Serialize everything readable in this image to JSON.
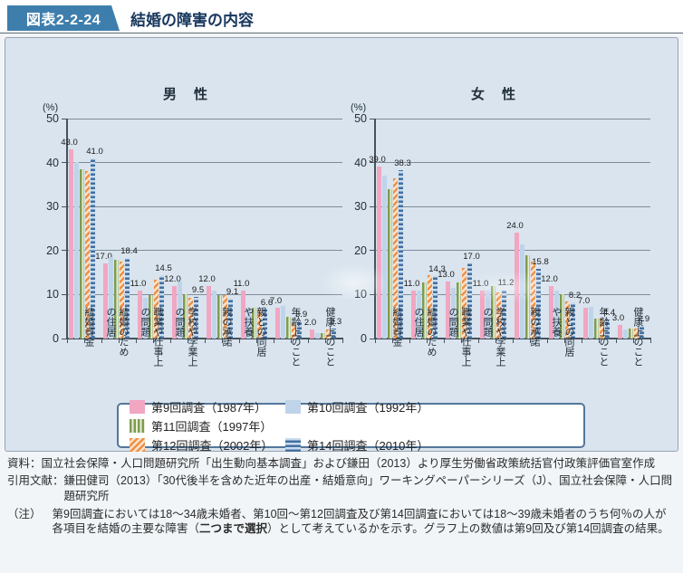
{
  "header": {
    "fig_label": "図表2-2-24",
    "title": "結婚の障害の内容"
  },
  "axis": {
    "percent_label": "(%)",
    "y_ticks": [
      50,
      40,
      30,
      20,
      10,
      0
    ],
    "ylim": [
      0,
      50
    ]
  },
  "chart_data": [
    {
      "type": "bar",
      "title": "男　性",
      "ylabel": "(%)",
      "ylim": [
        0,
        50
      ],
      "grid": true,
      "categories": [
        "結婚資金",
        "結婚のための住居",
        "職業や仕事上の問題",
        "学校や学業上の問題",
        "親の承諾",
        "親との同居や扶養",
        "年齢上のこと",
        "健康上のこと"
      ],
      "categories_display": [
        "結婚資金",
        "結婚のため\nの住居",
        "職業や仕事上\nの問題",
        "学校や学業上\nの問題",
        "親の承諾",
        "親との同居\nや扶養",
        "年齢上のこと",
        "健康上のこと"
      ],
      "series": [
        {
          "name": "第9回調査（1987年）",
          "pattern": "p-s9",
          "show_labels": true,
          "values": [
            43.0,
            17.0,
            11.0,
            12.0,
            12.0,
            11.0,
            7.0,
            2.0
          ]
        },
        {
          "name": "第10回調査（1992年）",
          "pattern": "p-s10",
          "show_labels": false,
          "values": [
            40.2,
            18.6,
            9.3,
            13.0,
            11.0,
            7.0,
            7.5,
            1.3
          ]
        },
        {
          "name": "第11回調査（1997年）",
          "pattern": "p-s11",
          "show_labels": false,
          "values": [
            38.5,
            18.0,
            9.9,
            10.0,
            9.8,
            7.0,
            5.0,
            1.2
          ]
        },
        {
          "name": "第12回調査（2002年）",
          "pattern": "p-s12",
          "show_labels": false,
          "values": [
            38.0,
            17.4,
            13.4,
            9.3,
            9.9,
            6.5,
            3.5,
            2.0
          ]
        },
        {
          "name": "第14回調査（2010年）",
          "pattern": "p-s14",
          "show_labels": true,
          "values": [
            41.0,
            18.4,
            14.5,
            9.5,
            9.1,
            6.6,
            3.9,
            2.3
          ]
        }
      ]
    },
    {
      "type": "bar",
      "title": "女　性",
      "ylabel": "(%)",
      "ylim": [
        0,
        50
      ],
      "grid": true,
      "categories": [
        "結婚資金",
        "結婚のための住居",
        "職業や仕事上の問題",
        "学校や学業上の問題",
        "親の承諾",
        "親との同居や扶養",
        "年齢上のこと",
        "健康上のこと"
      ],
      "categories_display": [
        "結婚資金",
        "結婚のため\nの住居",
        "職業や仕事上\nの問題",
        "学校や学業上\nの問題",
        "親の承諾",
        "親との同居\nや扶養",
        "年齢上のこと",
        "健康上のこと"
      ],
      "series": [
        {
          "name": "第9回調査（1987年）",
          "pattern": "p-s9",
          "show_labels": true,
          "values": [
            39.0,
            11.0,
            13.0,
            11.0,
            24.0,
            12.0,
            7.0,
            3.0
          ]
        },
        {
          "name": "第10回調査（1992年）",
          "pattern": "p-s10",
          "show_labels": false,
          "values": [
            37.0,
            11.0,
            11.5,
            11.0,
            21.5,
            11.0,
            7.2,
            2.0
          ]
        },
        {
          "name": "第11回調査（1997年）",
          "pattern": "p-s11",
          "show_labels": false,
          "values": [
            34.0,
            12.8,
            12.8,
            12.0,
            19.0,
            10.0,
            4.5,
            2.2
          ]
        },
        {
          "name": "第12回調査（2002年）",
          "pattern": "p-s12",
          "show_labels": false,
          "values": [
            36.5,
            14.5,
            16.0,
            10.4,
            17.5,
            8.5,
            4.5,
            2.2
          ]
        },
        {
          "name": "第14回調査（2010年）",
          "pattern": "p-s14",
          "show_labels": true,
          "values": [
            38.3,
            14.3,
            17.0,
            11.2,
            15.8,
            8.2,
            4.4,
            2.9
          ]
        }
      ],
      "note": "数値ラベルは第9回（1987年）と第14回（2010年）の系列のみ表示"
    }
  ],
  "legend": {
    "items": [
      {
        "label": "第9回調査（1987年）",
        "pattern": "p-s9"
      },
      {
        "label": "第10回調査（1992年）",
        "pattern": "p-s10"
      },
      {
        "label": "第11回調査（1997年）",
        "pattern": "p-s11"
      },
      {
        "label": "第12回調査（2002年）",
        "pattern": "p-s12"
      },
      {
        "label": "第14回調査（2010年）",
        "pattern": "p-s14"
      }
    ]
  },
  "footer": {
    "source_label": "資料：",
    "source_text": "国立社会保障・人口問題研究所「出生動向基本調査」および鎌田（2013）より厚生労働省政策統括官付政策評価官室作成",
    "citation_label": "引用文献：",
    "citation_text": "鎌田健司（2013）「30代後半を含めた近年の出産・結婚意向」ワーキングペーパーシリーズ（J）、国立社会保障・人口問題研究所",
    "note_label": "（注）",
    "note_p1": "第9回調査においては18～34歳未婚者、第10回～第12回調査及び第14回調査においては18～39歳未婚者のうち何％の人が各項目を結婚の主要な障害（",
    "note_bold": "二つまで選択",
    "note_p2": "）として考えているかを示す。グラフ上の数値は第9回及び第14回調査の結果。"
  },
  "colors": {
    "header_badge": "#3e7ead",
    "panel_bg": "#d9e4ee",
    "s9_pink": "#f1a6c2",
    "s10_lightblue": "#bfd4e9",
    "s11_green": "#7e9c50",
    "s12_orange": "#ef9046",
    "s14_blue": "#436fa0",
    "gridline": "#7e8c99"
  }
}
